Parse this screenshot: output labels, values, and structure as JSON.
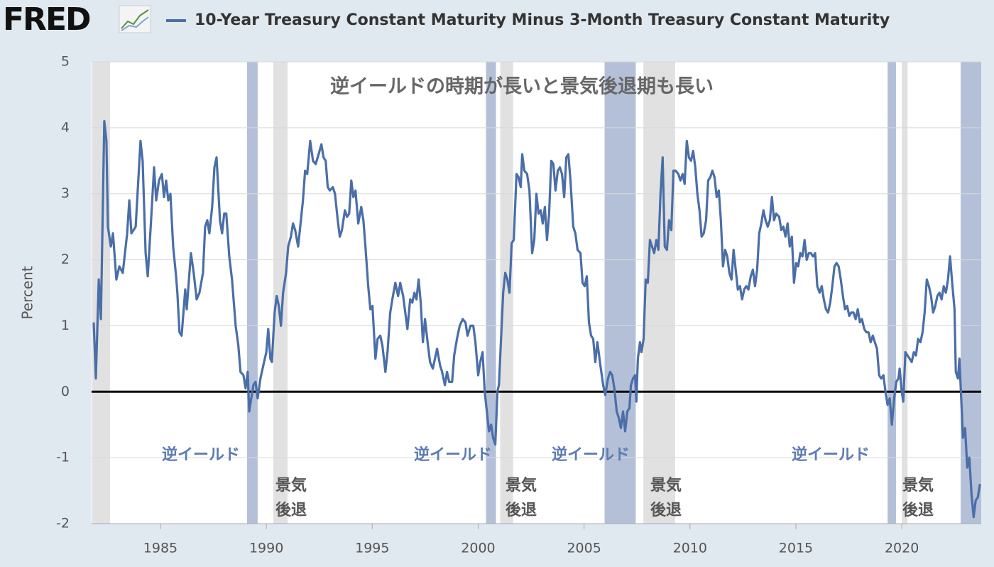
{
  "chart_data": {
    "type": "line",
    "logo": "FRED",
    "title": "逆イールドの時期が長いと景気後退期も長い",
    "ylabel": "Percent",
    "xlim": [
      1981.75,
      2023.75
    ],
    "ylim": [
      -2,
      5
    ],
    "xticks": [
      1985,
      1990,
      1995,
      2000,
      2005,
      2010,
      2015,
      2020
    ],
    "yticks": [
      -2,
      -1,
      0,
      1,
      2,
      3,
      4,
      5
    ],
    "grid": true,
    "reference_line": 0,
    "recession_color": "#e1e1e1",
    "inversion_color": "#b4c0d7",
    "recessions": [
      [
        1981.78,
        1982.62
      ],
      [
        1990.33,
        1991.0
      ],
      [
        2001.04,
        2001.65
      ],
      [
        2007.8,
        2009.3
      ],
      [
        2020.0,
        2020.27
      ]
    ],
    "inversions": [
      [
        1989.09,
        1989.59
      ],
      [
        2000.37,
        2000.84
      ],
      [
        2005.97,
        2007.44
      ],
      [
        2019.33,
        2019.73
      ],
      [
        2022.78,
        2023.75
      ]
    ],
    "inversion_labels": [
      "逆イールド",
      "逆イールド",
      "逆イールド",
      "逆イールド"
    ],
    "recession_labels": [
      [
        "景気",
        "後退"
      ],
      [
        "景気",
        "後退"
      ],
      [
        "景気",
        "後退"
      ],
      [
        "景気",
        "後退"
      ]
    ],
    "x": [
      1981.85,
      1981.95,
      1982.09,
      1982.19,
      1982.35,
      1982.45,
      1982.52,
      1982.66,
      1982.76,
      1982.92,
      1983.06,
      1983.22,
      1983.43,
      1983.53,
      1983.63,
      1983.83,
      1984.06,
      1984.16,
      1984.3,
      1984.4,
      1984.56,
      1984.7,
      1984.8,
      1984.93,
      1985.07,
      1985.17,
      1985.27,
      1985.37,
      1985.47,
      1985.6,
      1985.74,
      1985.8,
      1985.9,
      1986.0,
      1986.17,
      1986.24,
      1986.44,
      1986.57,
      1986.71,
      1986.84,
      1987.01,
      1987.11,
      1987.21,
      1987.31,
      1987.44,
      1987.55,
      1987.65,
      1987.81,
      1987.91,
      1988.01,
      1988.11,
      1988.25,
      1988.38,
      1988.55,
      1988.68,
      1988.78,
      1988.92,
      1989.02,
      1989.12,
      1989.19,
      1989.29,
      1989.39,
      1989.49,
      1989.59,
      1989.72,
      1989.86,
      1990.0,
      1990.09,
      1990.19,
      1990.26,
      1990.39,
      1990.49,
      1990.59,
      1990.69,
      1990.79,
      1990.93,
      1991.03,
      1991.16,
      1991.26,
      1991.36,
      1991.5,
      1991.63,
      1991.73,
      1991.83,
      1991.93,
      1992.07,
      1992.2,
      1992.33,
      1992.47,
      1992.6,
      1992.7,
      1992.8,
      1992.9,
      1993.0,
      1993.14,
      1993.24,
      1993.37,
      1993.47,
      1993.57,
      1993.71,
      1993.81,
      1993.91,
      1994.01,
      1994.11,
      1994.21,
      1994.34,
      1994.48,
      1994.58,
      1994.68,
      1994.81,
      1994.91,
      1995.01,
      1995.15,
      1995.25,
      1995.38,
      1995.48,
      1995.62,
      1995.72,
      1995.85,
      1995.95,
      1996.09,
      1996.22,
      1996.32,
      1996.46,
      1996.56,
      1996.66,
      1996.79,
      1996.89,
      1996.99,
      1997.09,
      1997.19,
      1997.29,
      1997.39,
      1997.49,
      1997.63,
      1997.73,
      1997.86,
      1997.96,
      1998.06,
      1998.2,
      1998.3,
      1998.43,
      1998.53,
      1998.63,
      1998.77,
      1998.87,
      1999.0,
      1999.13,
      1999.27,
      1999.4,
      1999.5,
      1999.64,
      1999.77,
      1999.87,
      2000.0,
      2000.1,
      2000.21,
      2000.31,
      2000.41,
      2000.51,
      2000.61,
      2000.71,
      2000.81,
      2000.91,
      2000.98,
      2001.08,
      2001.18,
      2001.28,
      2001.38,
      2001.48,
      2001.58,
      2001.68,
      2001.81,
      2001.91,
      2002.01,
      2002.08,
      2002.18,
      2002.31,
      2002.42,
      2002.55,
      2002.65,
      2002.75,
      2002.85,
      2002.95,
      2003.05,
      2003.15,
      2003.25,
      2003.35,
      2003.45,
      2003.55,
      2003.65,
      2003.76,
      2003.86,
      2003.96,
      2004.06,
      2004.16,
      2004.26,
      2004.36,
      2004.49,
      2004.59,
      2004.69,
      2004.83,
      2004.93,
      2005.03,
      2005.13,
      2005.23,
      2005.33,
      2005.43,
      2005.53,
      2005.63,
      2005.77,
      2005.9,
      2006.0,
      2006.13,
      2006.23,
      2006.33,
      2006.43,
      2006.54,
      2006.64,
      2006.74,
      2006.84,
      2006.94,
      2007.04,
      2007.14,
      2007.21,
      2007.31,
      2007.41,
      2007.47,
      2007.54,
      2007.64,
      2007.71,
      2007.81,
      2007.91,
      2008.01,
      2008.11,
      2008.21,
      2008.31,
      2008.41,
      2008.51,
      2008.61,
      2008.71,
      2008.81,
      2008.91,
      2009.01,
      2009.12,
      2009.22,
      2009.32,
      2009.45,
      2009.55,
      2009.65,
      2009.75,
      2009.85,
      2009.95,
      2010.05,
      2010.15,
      2010.25,
      2010.35,
      2010.45,
      2010.55,
      2010.65,
      2010.76,
      2010.86,
      2010.96,
      2011.06,
      2011.16,
      2011.26,
      2011.36,
      2011.46,
      2011.56,
      2011.66,
      2011.76,
      2011.86,
      2011.96,
      2012.06,
      2012.16,
      2012.26,
      2012.36,
      2012.46,
      2012.56,
      2012.66,
      2012.76,
      2012.87,
      2012.97,
      2013.07,
      2013.17,
      2013.27,
      2013.37,
      2013.47,
      2013.57,
      2013.67,
      2013.77,
      2013.87,
      2013.97,
      2014.07,
      2014.21,
      2014.31,
      2014.41,
      2014.51,
      2014.61,
      2014.71,
      2014.81,
      2014.91,
      2015.01,
      2015.11,
      2015.21,
      2015.31,
      2015.41,
      2015.51,
      2015.61,
      2015.71,
      2015.81,
      2015.91,
      2016.01,
      2016.12,
      2016.22,
      2016.32,
      2016.42,
      2016.52,
      2016.62,
      2016.72,
      2016.82,
      2016.92,
      2017.02,
      2017.12,
      2017.22,
      2017.32,
      2017.42,
      2017.52,
      2017.62,
      2017.72,
      2017.82,
      2017.92,
      2018.02,
      2018.12,
      2018.23,
      2018.33,
      2018.43,
      2018.53,
      2018.63,
      2018.73,
      2018.83,
      2018.93,
      2019.03,
      2019.13,
      2019.23,
      2019.33,
      2019.43,
      2019.53,
      2019.64,
      2019.74,
      2019.84,
      2019.9,
      2020.0,
      2020.07,
      2020.17,
      2020.27,
      2020.37,
      2020.47,
      2020.57,
      2020.67,
      2020.77,
      2020.88,
      2020.98,
      2021.08,
      2021.18,
      2021.28,
      2021.38,
      2021.48,
      2021.58,
      2021.68,
      2021.78,
      2021.88,
      2021.98,
      2022.08,
      2022.18,
      2022.28,
      2022.38,
      2022.49,
      2022.55,
      2022.65,
      2022.72,
      2022.79,
      2022.89,
      2022.99,
      2023.09,
      2023.19,
      2023.29,
      2023.39,
      2023.49,
      2023.59,
      2023.69
    ],
    "series": [
      {
        "name": "10-Year Treasury Constant Maturity Minus 3-Month Treasury Constant Maturity",
        "color": "#4a6ea8",
        "values": [
          1.05,
          0.2,
          1.7,
          1.1,
          4.1,
          3.8,
          2.5,
          2.2,
          2.4,
          1.7,
          1.9,
          1.8,
          2.4,
          2.9,
          2.4,
          2.5,
          3.8,
          3.5,
          2.1,
          1.75,
          2.6,
          3.4,
          2.9,
          3.2,
          3.3,
          2.95,
          3.2,
          2.9,
          3.0,
          2.2,
          1.75,
          1.5,
          0.9,
          0.85,
          1.55,
          1.25,
          2.1,
          1.8,
          1.4,
          1.5,
          1.8,
          2.5,
          2.6,
          2.4,
          2.8,
          3.4,
          3.55,
          2.6,
          2.4,
          2.7,
          2.7,
          2.05,
          1.7,
          1.0,
          0.7,
          0.3,
          0.25,
          0.05,
          0.3,
          -0.3,
          -0.1,
          0.1,
          0.15,
          -0.1,
          0.2,
          0.4,
          0.6,
          0.95,
          0.5,
          0.45,
          1.2,
          1.45,
          1.3,
          1.0,
          1.5,
          1.8,
          2.2,
          2.35,
          2.55,
          2.45,
          2.2,
          2.6,
          2.9,
          3.35,
          3.3,
          3.8,
          3.5,
          3.45,
          3.6,
          3.75,
          3.55,
          3.5,
          3.1,
          3.05,
          3.1,
          3.0,
          2.6,
          2.35,
          2.45,
          2.75,
          2.65,
          2.7,
          3.2,
          2.95,
          3.05,
          2.55,
          2.8,
          2.6,
          2.2,
          1.6,
          1.25,
          1.3,
          0.5,
          0.8,
          0.85,
          0.7,
          0.3,
          0.6,
          1.2,
          1.4,
          1.65,
          1.45,
          1.65,
          1.45,
          1.2,
          0.95,
          1.4,
          1.35,
          1.5,
          1.4,
          1.7,
          1.35,
          0.75,
          1.1,
          0.7,
          0.45,
          0.35,
          0.5,
          0.65,
          0.4,
          0.3,
          0.1,
          0.3,
          0.15,
          0.15,
          0.55,
          0.8,
          1.0,
          1.1,
          1.05,
          0.85,
          1.0,
          1.0,
          0.75,
          0.25,
          0.45,
          0.6,
          0.0,
          -0.3,
          -0.6,
          -0.5,
          -0.7,
          -0.8,
          0.0,
          0.1,
          0.8,
          1.5,
          1.8,
          1.7,
          1.5,
          2.25,
          2.3,
          3.3,
          3.25,
          3.1,
          3.6,
          3.35,
          3.3,
          3.05,
          2.1,
          2.3,
          3.0,
          2.7,
          2.75,
          2.55,
          2.8,
          2.3,
          2.7,
          3.5,
          3.45,
          3.05,
          3.35,
          3.4,
          3.3,
          2.95,
          3.55,
          3.6,
          3.2,
          2.5,
          2.4,
          2.15,
          2.1,
          1.65,
          1.6,
          1.75,
          1.05,
          0.85,
          0.8,
          0.45,
          0.75,
          0.4,
          0.1,
          -0.05,
          0.2,
          0.3,
          0.25,
          0.05,
          -0.3,
          -0.4,
          -0.55,
          -0.3,
          -0.6,
          -0.3,
          -0.25,
          0.1,
          0.2,
          0.25,
          -0.15,
          0.5,
          0.75,
          0.6,
          0.8,
          1.7,
          1.65,
          2.3,
          2.2,
          2.1,
          2.3,
          2.15,
          3.0,
          3.55,
          2.2,
          2.15,
          2.6,
          2.45,
          3.35,
          3.35,
          3.3,
          3.2,
          3.3,
          3.15,
          3.8,
          3.55,
          3.5,
          3.65,
          3.4,
          3.0,
          2.75,
          2.35,
          2.4,
          2.6,
          3.2,
          3.25,
          3.35,
          3.25,
          2.95,
          3.05,
          2.6,
          1.9,
          2.15,
          2.05,
          1.8,
          1.7,
          2.15,
          1.85,
          1.55,
          1.6,
          1.4,
          1.55,
          1.6,
          1.55,
          1.75,
          1.85,
          1.6,
          1.85,
          2.4,
          2.55,
          2.75,
          2.6,
          2.5,
          2.6,
          2.95,
          2.6,
          2.7,
          2.65,
          2.45,
          2.5,
          2.35,
          2.55,
          2.2,
          2.35,
          1.65,
          1.95,
          1.9,
          2.1,
          2.05,
          2.3,
          2.0,
          2.1,
          2.1,
          2.05,
          2.1,
          1.6,
          1.5,
          1.6,
          1.4,
          1.25,
          1.2,
          1.35,
          1.6,
          1.9,
          1.95,
          1.9,
          1.7,
          1.45,
          1.25,
          1.3,
          1.15,
          1.2,
          1.2,
          1.1,
          1.25,
          1.05,
          1.1,
          0.95,
          0.9,
          0.9,
          0.75,
          0.85,
          0.75,
          0.65,
          0.25,
          0.2,
          0.25,
          0.0,
          -0.2,
          -0.1,
          -0.5,
          -0.1,
          0.15,
          0.2,
          0.35,
          0.0,
          -0.15,
          0.6,
          0.55,
          0.5,
          0.45,
          0.6,
          0.55,
          0.8,
          0.75,
          0.9,
          1.2,
          1.7,
          1.6,
          1.45,
          1.2,
          1.3,
          1.45,
          1.5,
          1.4,
          1.6,
          1.5,
          1.7,
          2.05,
          1.65,
          1.25,
          0.3,
          0.2,
          0.5,
          0.0,
          -0.7,
          -0.55,
          -1.15,
          -1.0,
          -1.55,
          -1.9,
          -1.65,
          -1.6,
          -1.4
        ]
      }
    ]
  }
}
